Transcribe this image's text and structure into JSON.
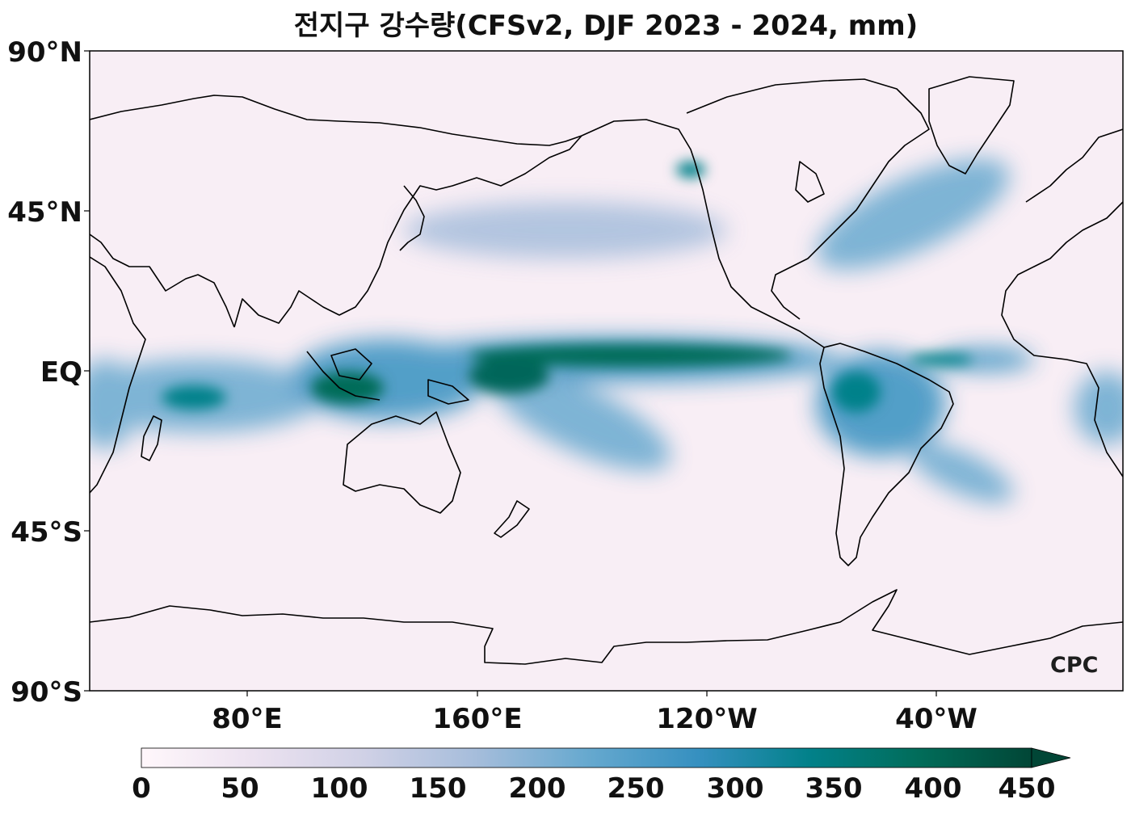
{
  "title": "전지구 강수량(CFSv2, DJF 2023 - 2024, mm)",
  "watermark": "CPC",
  "latitude_labels": [
    "90°N",
    "45°N",
    "EQ",
    "45°S",
    "90°S"
  ],
  "longitude_labels": [
    "80°E",
    "160°E",
    "120°W",
    "40°W"
  ],
  "colorbar": {
    "ticks": [
      "0",
      "50",
      "100",
      "150",
      "200",
      "250",
      "300",
      "350",
      "400",
      "450"
    ],
    "min": 0,
    "max": 450,
    "extend": "max",
    "colors": [
      "#fff7fb",
      "#ece2f0",
      "#d0d1e6",
      "#a6bddb",
      "#67a9cf",
      "#3690c0",
      "#02818a",
      "#016c59",
      "#014636"
    ]
  },
  "colors": {
    "coastline": "#000000",
    "ocean_background": "#f8eef5",
    "frame": "#000000"
  }
}
